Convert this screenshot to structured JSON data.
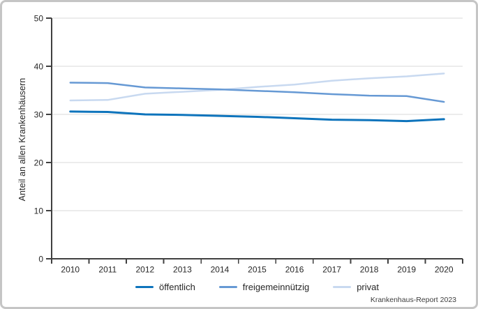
{
  "panel": {
    "background": "#ffffff",
    "border_color": "#c5c5c5"
  },
  "chart_data": {
    "type": "line",
    "title": "",
    "xlabel": "",
    "ylabel": "Anteil an allen Krankenhäusern",
    "ylim": [
      0,
      50
    ],
    "y_ticks": [
      0,
      10,
      20,
      30,
      40,
      50
    ],
    "grid": "horizontal",
    "grid_color": "#d9d9d9",
    "axis_color": "#404040",
    "text_color": "#262626",
    "legend_position": "bottom-center",
    "categories": [
      "2010",
      "2011",
      "2012",
      "2013",
      "2014",
      "2015",
      "2016",
      "2017",
      "2018",
      "2019",
      "2020"
    ],
    "series": [
      {
        "name": "öffentlich",
        "color": "#0e74bc",
        "values": [
          30.6,
          30.5,
          30.0,
          29.9,
          29.7,
          29.5,
          29.2,
          28.9,
          28.8,
          28.6,
          29.0
        ]
      },
      {
        "name": "freigemeinnützig",
        "color": "#6699d4",
        "values": [
          36.6,
          36.5,
          35.6,
          35.4,
          35.2,
          34.9,
          34.6,
          34.2,
          33.9,
          33.8,
          32.6
        ]
      },
      {
        "name": "privat",
        "color": "#c8d9f0",
        "values": [
          32.9,
          33.0,
          34.3,
          34.7,
          35.1,
          35.7,
          36.2,
          37.0,
          37.5,
          37.9,
          38.5
        ]
      }
    ],
    "source": "Krankenhaus-Report 2023"
  }
}
